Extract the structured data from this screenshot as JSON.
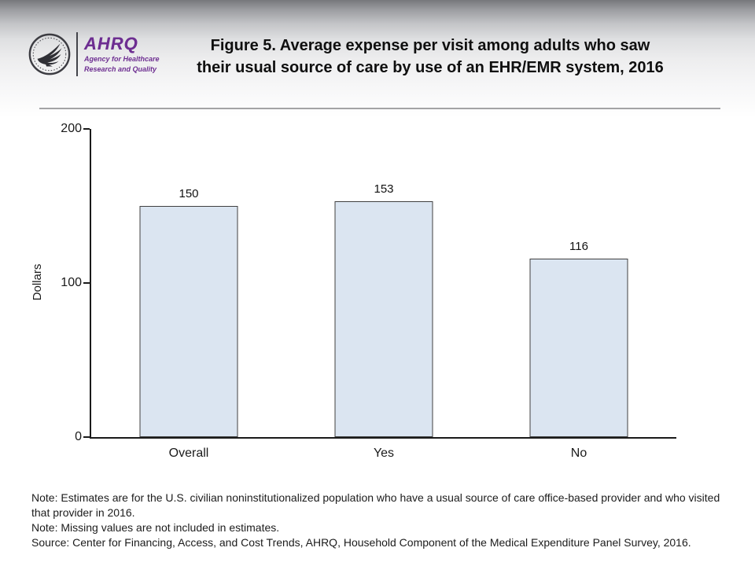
{
  "header": {
    "logo": {
      "org_abbr": "AHRQ",
      "tagline_line1": "Agency for Healthcare",
      "tagline_line2": "Research and Quality",
      "brand_color": "#6d2e91"
    },
    "title_line1": "Figure 5. Average expense per visit among adults who saw",
    "title_line2": "their usual source of care by use of an EHR/EMR system, 2016"
  },
  "chart_data": {
    "type": "bar",
    "title": "Figure 5. Average expense per visit among adults who saw their usual source of care by use of an EHR/EMR system, 2016",
    "categories": [
      "Overall",
      "Yes",
      "No"
    ],
    "values": [
      150,
      153,
      116
    ],
    "data_labels": [
      "150",
      "153",
      "116"
    ],
    "xlabel": "",
    "ylabel": "Dollars",
    "ylim": [
      0,
      200
    ],
    "yticks": [
      0,
      100,
      200
    ],
    "grid": false,
    "legend": false,
    "bar_fill": "#dbe5f1",
    "bar_border": "#404040"
  },
  "notes": {
    "note1": "Note: Estimates are for the U.S. civilian noninstitutionalized population who have a usual source of care office-based provider and who visited that provider in 2016.",
    "note2": "Note: Missing values are not included in estimates.",
    "source": "Source: Center for Financing, Access, and Cost Trends, AHRQ, Household Component of the Medical Expenditure Panel Survey, 2016."
  }
}
